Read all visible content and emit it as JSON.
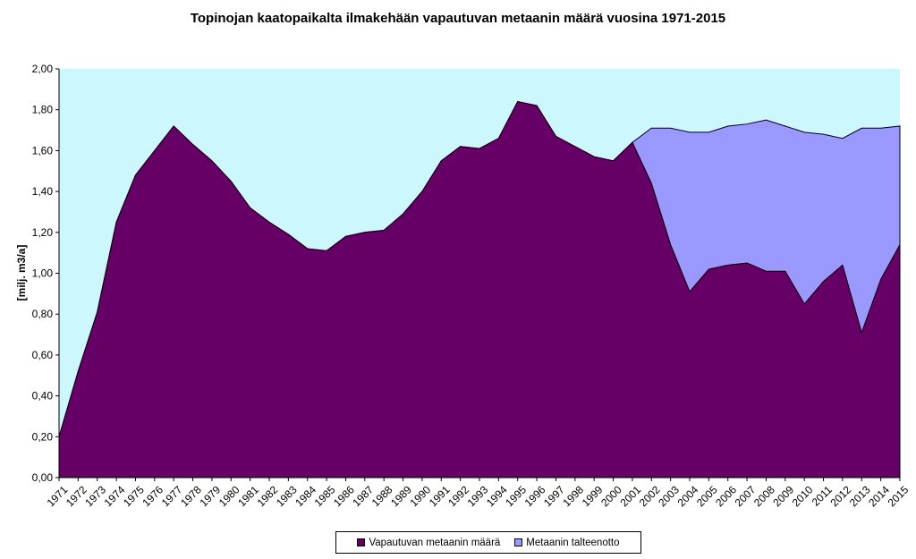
{
  "colors": {
    "plot_background": "#ccf8fd",
    "emission": "#660066",
    "recovery": "#9999ff"
  },
  "chart_data": {
    "type": "area",
    "title": "Topinojan kaatopaikalta ilmakehään vapautuvan metaanin määrä vuosina 1971-2015",
    "ylabel": "[milj. m3/a]",
    "xlabel": "",
    "ylim": [
      0,
      2.0
    ],
    "yticks": [
      "0,00",
      "0,20",
      "0,40",
      "0,60",
      "0,80",
      "1,00",
      "1,20",
      "1,40",
      "1,60",
      "1,80",
      "2,00"
    ],
    "grid": false,
    "legend_position": "bottom",
    "stacked": true,
    "categories": [
      "1971",
      "1972",
      "1973",
      "1974",
      "1975",
      "1976",
      "1977",
      "1978",
      "1979",
      "1980",
      "1981",
      "1982",
      "1983",
      "1984",
      "1985",
      "1986",
      "1987",
      "1988",
      "1989",
      "1990",
      "1991",
      "1992",
      "1993",
      "1994",
      "1995",
      "1996",
      "1997",
      "1998",
      "1999",
      "2000",
      "2001",
      "2002",
      "2003",
      "2004",
      "2005",
      "2006",
      "2007",
      "2008",
      "2009",
      "2010",
      "2011",
      "2012",
      "2013",
      "2014",
      "2015"
    ],
    "series": [
      {
        "name": "Vapautuvan metaanin määrä",
        "color": "#660066",
        "values": [
          0.2,
          0.52,
          0.81,
          1.25,
          1.48,
          1.6,
          1.72,
          1.63,
          1.55,
          1.45,
          1.32,
          1.25,
          1.19,
          1.12,
          1.11,
          1.18,
          1.2,
          1.21,
          1.29,
          1.4,
          1.55,
          1.62,
          1.61,
          1.66,
          1.84,
          1.82,
          1.67,
          1.62,
          1.57,
          1.55,
          1.64,
          1.44,
          1.14,
          0.91,
          1.02,
          1.04,
          1.05,
          1.01,
          1.01,
          0.85,
          0.96,
          1.04,
          0.71,
          0.97,
          1.14
        ]
      },
      {
        "name": "Metaanin talteenotto",
        "color": "#9999ff",
        "values": [
          0,
          0,
          0,
          0,
          0,
          0,
          0,
          0,
          0,
          0,
          0,
          0,
          0,
          0,
          0,
          0,
          0,
          0,
          0,
          0,
          0,
          0,
          0,
          0,
          0,
          0,
          0,
          0,
          0,
          0,
          0,
          0.27,
          0.57,
          0.78,
          0.67,
          0.68,
          0.68,
          0.74,
          0.71,
          0.84,
          0.72,
          0.62,
          1.0,
          0.74,
          0.58
        ]
      }
    ]
  }
}
